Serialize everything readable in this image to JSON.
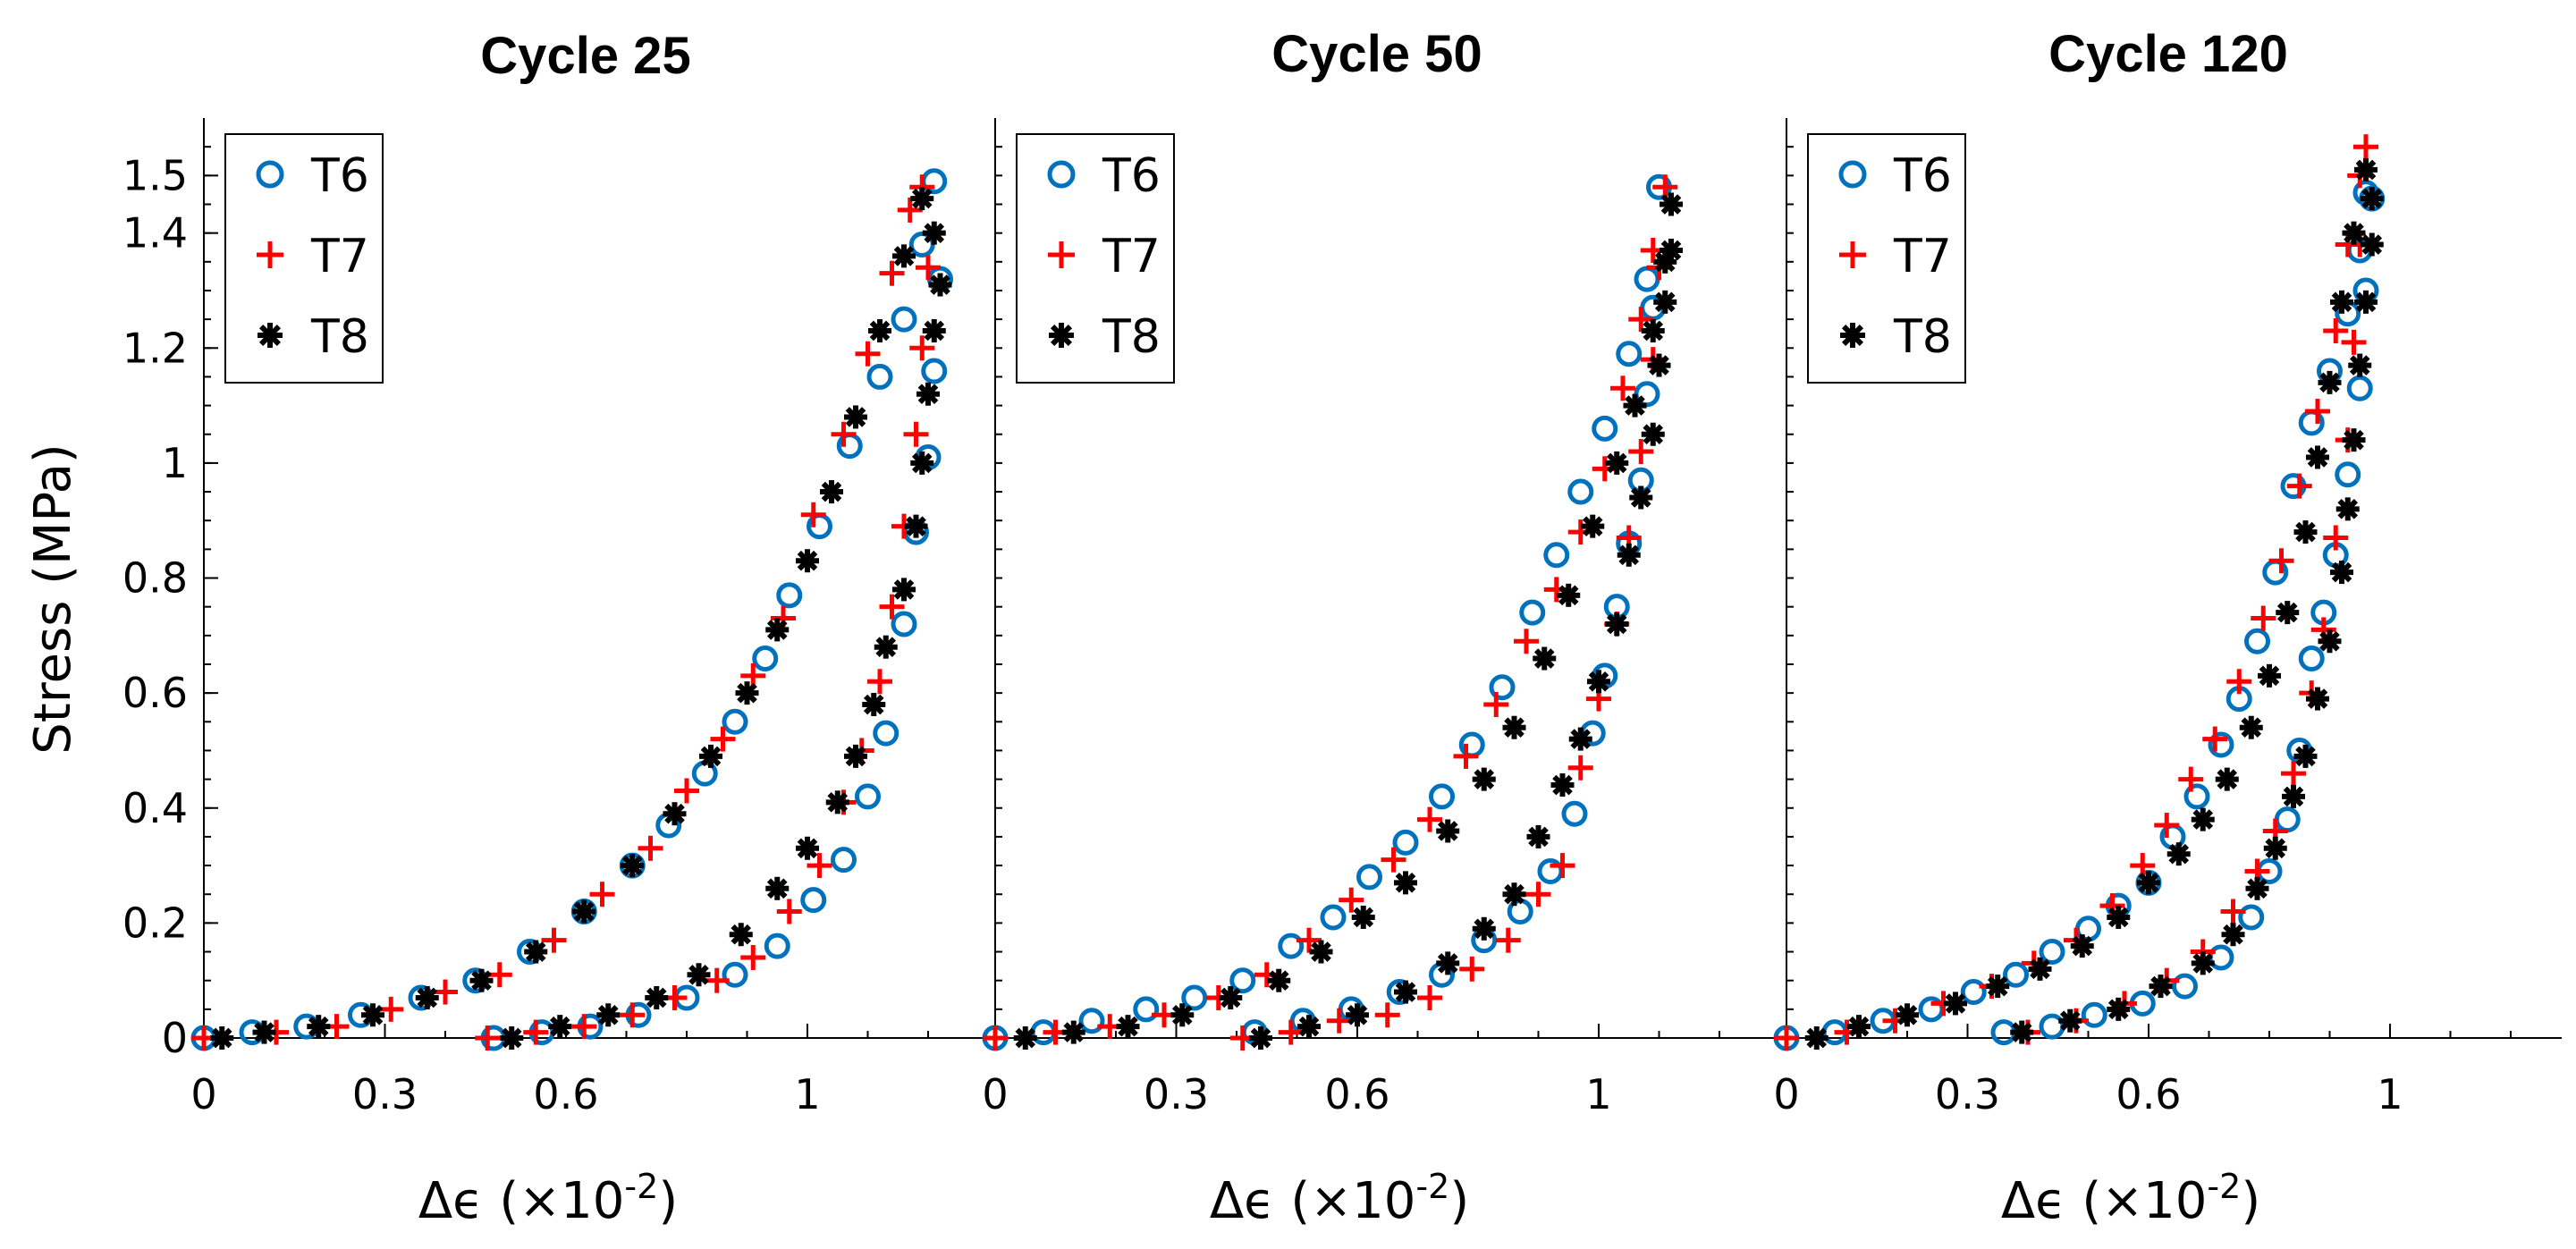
{
  "chart_data": [
    {
      "type": "scatter",
      "title": "Cycle 25",
      "ylabel": "Stress (MPa)",
      "xlabel": "Δϵ (×10",
      "xlabel_exp": "-2",
      "xlabel_close": ")",
      "xlim": [
        0,
        1.3
      ],
      "ylim": [
        0,
        1.6
      ],
      "xticks": [
        0,
        0.3,
        0.6,
        1
      ],
      "xtick_labels": [
        "0",
        "0.3",
        "0.6",
        "1"
      ],
      "yticks": [
        0,
        0.2,
        0.4,
        0.6,
        0.8,
        1,
        1.2,
        1.4,
        1.5
      ],
      "ytick_labels": [
        "0",
        "0.2",
        "0.4",
        "0.6",
        "0.8",
        "1",
        "1.2",
        "1.4",
        "1.5"
      ],
      "legend_position": "top-left",
      "series": [
        {
          "name": "T6",
          "marker": "circle",
          "color": "#0072BD",
          "x": [
            0,
            0.08,
            0.17,
            0.26,
            0.36,
            0.45,
            0.54,
            0.63,
            0.71,
            0.77,
            0.83,
            0.88,
            0.93,
            0.97,
            1.02,
            1.07,
            1.12,
            1.16,
            1.19,
            1.21,
            1.22,
            1.21,
            1.2,
            1.18,
            1.16,
            1.13,
            1.1,
            1.06,
            1.01,
            0.95,
            0.88,
            0.8,
            0.72,
            0.64,
            0.56,
            0.48
          ],
          "y": [
            0,
            0.01,
            0.02,
            0.04,
            0.07,
            0.1,
            0.15,
            0.22,
            0.3,
            0.37,
            0.46,
            0.55,
            0.66,
            0.77,
            0.89,
            1.03,
            1.15,
            1.25,
            1.38,
            1.49,
            1.32,
            1.16,
            1.01,
            0.88,
            0.72,
            0.53,
            0.42,
            0.31,
            0.24,
            0.16,
            0.11,
            0.07,
            0.04,
            0.02,
            0.01,
            0
          ]
        },
        {
          "name": "T7",
          "marker": "plus",
          "color": "#FF0000",
          "x": [
            0,
            0.12,
            0.22,
            0.31,
            0.4,
            0.49,
            0.58,
            0.66,
            0.74,
            0.8,
            0.86,
            0.91,
            0.96,
            1.01,
            1.06,
            1.1,
            1.14,
            1.17,
            1.19,
            1.2,
            1.19,
            1.18,
            1.16,
            1.14,
            1.12,
            1.09,
            1.06,
            1.02,
            0.97,
            0.91,
            0.85,
            0.78,
            0.71,
            0.63,
            0.55,
            0.47
          ],
          "y": [
            0,
            0.01,
            0.02,
            0.05,
            0.08,
            0.11,
            0.17,
            0.25,
            0.33,
            0.43,
            0.52,
            0.63,
            0.73,
            0.91,
            1.05,
            1.19,
            1.33,
            1.44,
            1.48,
            1.34,
            1.2,
            1.05,
            0.89,
            0.75,
            0.62,
            0.5,
            0.41,
            0.3,
            0.22,
            0.14,
            0.1,
            0.07,
            0.04,
            0.02,
            0.01,
            0
          ]
        },
        {
          "name": "T8",
          "marker": "asterisk",
          "color": "#000000",
          "x": [
            0.03,
            0.1,
            0.19,
            0.28,
            0.37,
            0.46,
            0.55,
            0.63,
            0.71,
            0.78,
            0.84,
            0.9,
            0.95,
            1.0,
            1.04,
            1.08,
            1.12,
            1.16,
            1.19,
            1.21,
            1.22,
            1.21,
            1.2,
            1.19,
            1.18,
            1.16,
            1.13,
            1.11,
            1.08,
            1.05,
            1.0,
            0.95,
            0.89,
            0.82,
            0.75,
            0.67,
            0.59,
            0.51
          ],
          "y": [
            0,
            0.01,
            0.02,
            0.04,
            0.07,
            0.1,
            0.15,
            0.22,
            0.3,
            0.39,
            0.49,
            0.6,
            0.71,
            0.83,
            0.95,
            1.08,
            1.23,
            1.36,
            1.46,
            1.4,
            1.31,
            1.23,
            1.12,
            1.0,
            0.89,
            0.78,
            0.68,
            0.58,
            0.49,
            0.41,
            0.33,
            0.26,
            0.18,
            0.11,
            0.07,
            0.04,
            0.02,
            0
          ]
        }
      ]
    },
    {
      "type": "scatter",
      "title": "Cycle 50",
      "xlabel": "Δϵ (×10",
      "xlabel_exp": "-2",
      "xlabel_close": ")",
      "xlim": [
        0,
        1.3
      ],
      "ylim": [
        0,
        1.6
      ],
      "xticks": [
        0,
        0.3,
        0.6,
        1
      ],
      "xtick_labels": [
        "0",
        "0.3",
        "0.6",
        "1"
      ],
      "legend_position": "top-left",
      "series": [
        {
          "name": "T6",
          "marker": "circle",
          "color": "#0072BD",
          "x": [
            0,
            0.08,
            0.16,
            0.25,
            0.33,
            0.41,
            0.49,
            0.56,
            0.62,
            0.68,
            0.74,
            0.79,
            0.84,
            0.89,
            0.93,
            0.97,
            1.01,
            1.05,
            1.08,
            1.1,
            1.09,
            1.08,
            1.07,
            1.05,
            1.03,
            1.01,
            0.99,
            0.96,
            0.92,
            0.87,
            0.81,
            0.74,
            0.67,
            0.59,
            0.51,
            0.43
          ],
          "y": [
            0,
            0.01,
            0.03,
            0.05,
            0.07,
            0.1,
            0.16,
            0.21,
            0.28,
            0.34,
            0.42,
            0.51,
            0.61,
            0.74,
            0.84,
            0.95,
            1.06,
            1.19,
            1.32,
            1.48,
            1.27,
            1.12,
            0.97,
            0.86,
            0.75,
            0.63,
            0.53,
            0.39,
            0.29,
            0.22,
            0.17,
            0.11,
            0.08,
            0.05,
            0.03,
            0.01
          ]
        },
        {
          "name": "T7",
          "marker": "plus",
          "color": "#FF0000",
          "x": [
            0,
            0.1,
            0.19,
            0.28,
            0.37,
            0.45,
            0.52,
            0.59,
            0.66,
            0.72,
            0.78,
            0.83,
            0.88,
            0.93,
            0.97,
            1.01,
            1.04,
            1.07,
            1.09,
            1.11,
            1.1,
            1.09,
            1.07,
            1.05,
            1.03,
            1.0,
            0.97,
            0.94,
            0.9,
            0.85,
            0.79,
            0.72,
            0.65,
            0.57,
            0.49,
            0.41
          ],
          "y": [
            0,
            0.01,
            0.02,
            0.04,
            0.07,
            0.11,
            0.17,
            0.24,
            0.31,
            0.38,
            0.49,
            0.58,
            0.69,
            0.78,
            0.88,
            0.99,
            1.13,
            1.25,
            1.37,
            1.48,
            1.34,
            1.18,
            1.02,
            0.87,
            0.72,
            0.59,
            0.47,
            0.3,
            0.25,
            0.17,
            0.12,
            0.07,
            0.04,
            0.03,
            0.01,
            0
          ]
        },
        {
          "name": "T8",
          "marker": "asterisk",
          "color": "#000000",
          "x": [
            0.05,
            0.13,
            0.22,
            0.31,
            0.39,
            0.47,
            0.54,
            0.61,
            0.68,
            0.75,
            0.81,
            0.86,
            0.91,
            0.95,
            0.99,
            1.03,
            1.06,
            1.09,
            1.11,
            1.12,
            1.12,
            1.11,
            1.1,
            1.09,
            1.07,
            1.05,
            1.03,
            1.0,
            0.97,
            0.94,
            0.9,
            0.86,
            0.81,
            0.75,
            0.68,
            0.6,
            0.52,
            0.44
          ],
          "y": [
            0,
            0.01,
            0.02,
            0.04,
            0.07,
            0.1,
            0.15,
            0.21,
            0.27,
            0.36,
            0.45,
            0.54,
            0.66,
            0.77,
            0.89,
            1.0,
            1.1,
            1.23,
            1.35,
            1.45,
            1.37,
            1.28,
            1.17,
            1.05,
            0.94,
            0.84,
            0.72,
            0.62,
            0.52,
            0.44,
            0.35,
            0.25,
            0.19,
            0.13,
            0.08,
            0.04,
            0.02,
            0
          ]
        }
      ]
    },
    {
      "type": "scatter",
      "title": "Cycle 120",
      "xlabel": "Δϵ (×10",
      "xlabel_exp": "-2",
      "xlabel_close": ")",
      "xlim": [
        0,
        1.3
      ],
      "ylim": [
        0,
        1.6
      ],
      "xticks": [
        0,
        0.3,
        0.6,
        1
      ],
      "xtick_labels": [
        "0",
        "0.3",
        "0.6",
        "1"
      ],
      "legend_position": "top-left",
      "series": [
        {
          "name": "T6",
          "marker": "circle",
          "color": "#0072BD",
          "x": [
            0,
            0.08,
            0.16,
            0.24,
            0.31,
            0.38,
            0.44,
            0.5,
            0.55,
            0.6,
            0.64,
            0.68,
            0.72,
            0.75,
            0.78,
            0.81,
            0.84,
            0.87,
            0.9,
            0.93,
            0.95,
            0.96,
            0.97,
            0.96,
            0.95,
            0.93,
            0.91,
            0.89,
            0.87,
            0.85,
            0.83,
            0.8,
            0.77,
            0.72,
            0.66,
            0.59,
            0.51,
            0.44,
            0.36
          ],
          "y": [
            0,
            0.01,
            0.03,
            0.05,
            0.08,
            0.11,
            0.15,
            0.19,
            0.23,
            0.27,
            0.35,
            0.42,
            0.51,
            0.59,
            0.69,
            0.81,
            0.96,
            1.07,
            1.16,
            1.26,
            1.37,
            1.47,
            1.46,
            1.3,
            1.13,
            0.98,
            0.84,
            0.74,
            0.66,
            0.5,
            0.38,
            0.29,
            0.21,
            0.14,
            0.09,
            0.06,
            0.04,
            0.02,
            0.01
          ]
        },
        {
          "name": "T7",
          "marker": "plus",
          "color": "#FF0000",
          "x": [
            0,
            0.1,
            0.18,
            0.26,
            0.34,
            0.41,
            0.48,
            0.54,
            0.59,
            0.63,
            0.67,
            0.71,
            0.75,
            0.79,
            0.82,
            0.85,
            0.88,
            0.91,
            0.93,
            0.95,
            0.96,
            0.95,
            0.94,
            0.93,
            0.91,
            0.89,
            0.87,
            0.84,
            0.81,
            0.78,
            0.74,
            0.69,
            0.63,
            0.56,
            0.48,
            0.4
          ],
          "y": [
            0,
            0.01,
            0.03,
            0.06,
            0.09,
            0.13,
            0.17,
            0.23,
            0.3,
            0.37,
            0.45,
            0.52,
            0.62,
            0.73,
            0.83,
            0.96,
            1.09,
            1.23,
            1.38,
            1.5,
            1.55,
            1.38,
            1.21,
            1.04,
            0.87,
            0.71,
            0.6,
            0.46,
            0.36,
            0.29,
            0.22,
            0.15,
            0.1,
            0.06,
            0.03,
            0.01
          ]
        },
        {
          "name": "T8",
          "marker": "asterisk",
          "color": "#000000",
          "x": [
            0.05,
            0.12,
            0.2,
            0.28,
            0.35,
            0.42,
            0.49,
            0.55,
            0.6,
            0.65,
            0.69,
            0.73,
            0.77,
            0.8,
            0.83,
            0.86,
            0.88,
            0.9,
            0.92,
            0.94,
            0.96,
            0.97,
            0.97,
            0.96,
            0.95,
            0.94,
            0.93,
            0.92,
            0.9,
            0.88,
            0.86,
            0.84,
            0.81,
            0.78,
            0.74,
            0.69,
            0.62,
            0.55,
            0.47,
            0.39
          ],
          "y": [
            0,
            0.02,
            0.04,
            0.06,
            0.09,
            0.12,
            0.16,
            0.21,
            0.27,
            0.32,
            0.38,
            0.45,
            0.54,
            0.63,
            0.74,
            0.88,
            1.01,
            1.14,
            1.28,
            1.4,
            1.51,
            1.46,
            1.38,
            1.28,
            1.17,
            1.04,
            0.92,
            0.81,
            0.69,
            0.59,
            0.49,
            0.42,
            0.33,
            0.26,
            0.18,
            0.13,
            0.09,
            0.05,
            0.03,
            0.01
          ]
        }
      ]
    }
  ]
}
